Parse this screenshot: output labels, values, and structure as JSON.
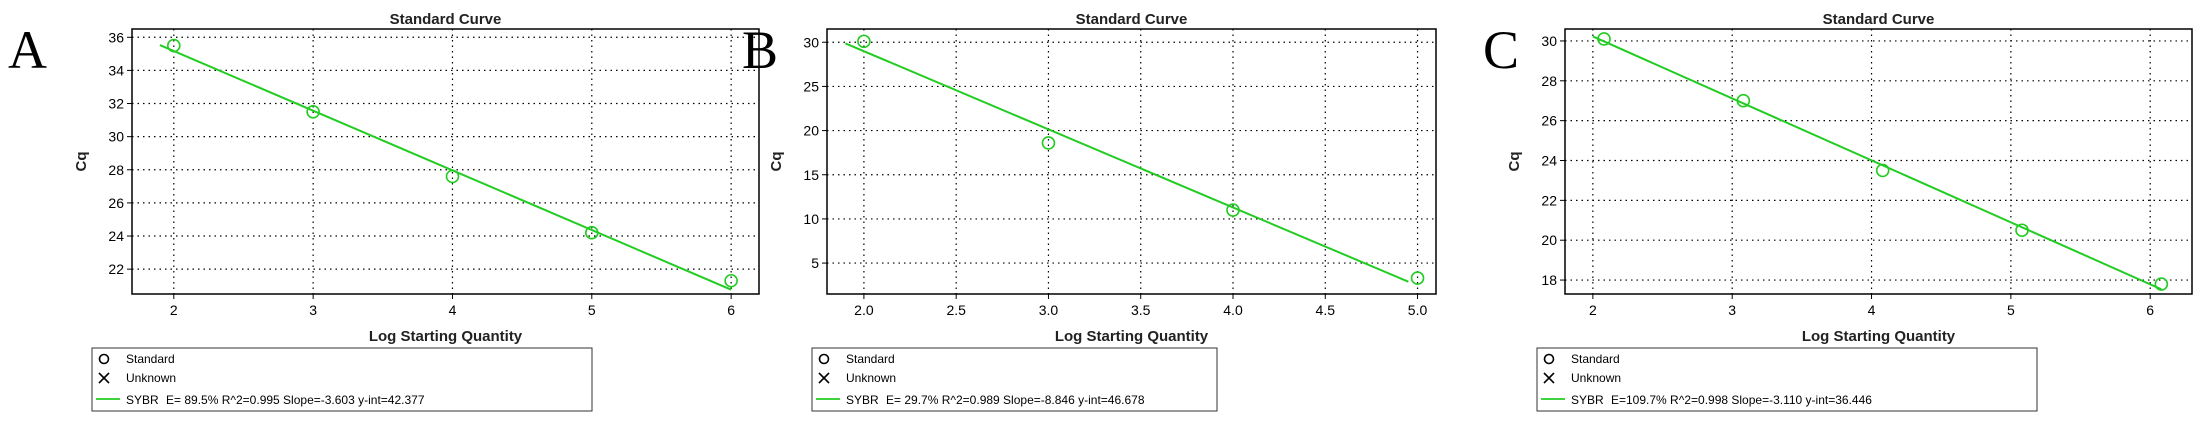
{
  "chart_data": [
    {
      "type": "scatter",
      "panel_letter": "A",
      "title": "Standard Curve",
      "xlabel": "Log Starting Quantity",
      "ylabel": "Cq",
      "xlim": [
        1.7,
        6.2
      ],
      "ylim": [
        20.5,
        36.5
      ],
      "xticks": [
        "2",
        "3",
        "4",
        "5",
        "6"
      ],
      "yticks": [
        "22",
        "24",
        "26",
        "28",
        "30",
        "32",
        "34",
        "36"
      ],
      "grid": true,
      "series": [
        {
          "name": "Standard",
          "marker": "circle",
          "x": [
            2,
            3,
            4,
            5,
            6
          ],
          "y": [
            35.5,
            31.5,
            27.6,
            24.2,
            21.3
          ]
        }
      ],
      "fit_line": {
        "slope": -3.603,
        "intercept": 42.377,
        "x_range": [
          1.9,
          6.0
        ]
      },
      "legend": {
        "placement": "bottom-left",
        "entries": [
          "Standard",
          "Unknown"
        ],
        "fit_label": "SYBR",
        "fit_text": "E= 89.5% R^2=0.995 Slope=-3.603 y-int=42.377"
      }
    },
    {
      "type": "scatter",
      "panel_letter": "B",
      "title": "Standard Curve",
      "xlabel": "Log Starting Quantity",
      "ylabel": "Cq",
      "xlim": [
        1.8,
        5.1
      ],
      "ylim": [
        1.5,
        31.5
      ],
      "xticks": [
        "2.0",
        "2.5",
        "3.0",
        "3.5",
        "4.0",
        "4.5",
        "5.0"
      ],
      "yticks": [
        "5",
        "10",
        "15",
        "20",
        "25",
        "30"
      ],
      "grid": true,
      "series": [
        {
          "name": "Standard",
          "marker": "circle",
          "x": [
            2,
            3,
            4,
            5
          ],
          "y": [
            30.1,
            18.6,
            11.0,
            3.3
          ]
        }
      ],
      "fit_line": {
        "slope": -8.846,
        "intercept": 46.678,
        "x_range": [
          1.9,
          4.95
        ]
      },
      "legend": {
        "placement": "bottom-left",
        "entries": [
          "Standard",
          "Unknown"
        ],
        "fit_label": "SYBR",
        "fit_text": "E= 29.7% R^2=0.989 Slope=-8.846 y-int=46.678"
      }
    },
    {
      "type": "scatter",
      "panel_letter": "C",
      "title": "Standard Curve",
      "xlabel": "Log Starting Quantity",
      "ylabel": "Cq",
      "xlim": [
        1.8,
        6.3
      ],
      "ylim": [
        17.3,
        30.6
      ],
      "xticks": [
        "2",
        "3",
        "4",
        "5",
        "6"
      ],
      "yticks": [
        "18",
        "20",
        "22",
        "24",
        "26",
        "28",
        "30"
      ],
      "grid": true,
      "series": [
        {
          "name": "Standard",
          "marker": "circle",
          "x": [
            2.08,
            3.08,
            4.08,
            5.08,
            6.08
          ],
          "y": [
            30.1,
            27.0,
            23.5,
            20.5,
            17.8
          ]
        }
      ],
      "fit_line": {
        "slope": -3.11,
        "intercept": 36.446,
        "x_range": [
          2.0,
          6.08
        ]
      },
      "legend": {
        "placement": "bottom-left",
        "entries": [
          "Standard",
          "Unknown"
        ],
        "fit_label": "SYBR",
        "fit_text": "E=109.7% R^2=0.998 Slope=-3.110 y-int=36.446"
      }
    }
  ],
  "colors": {
    "fit_line": "#22cc22",
    "marker": "#22cc22",
    "grid": "#000000",
    "frame": "#000000",
    "text": "#000000"
  }
}
